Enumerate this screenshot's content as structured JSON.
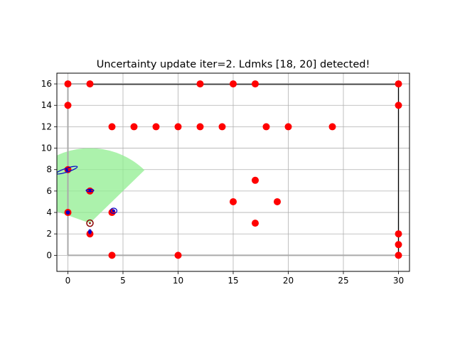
{
  "chart_data": {
    "type": "scatter",
    "title": "Uncertainty update iter=2. Ldmks [18, 20] detected!",
    "xlabel": "",
    "ylabel": "",
    "xlim": [
      -1,
      31
    ],
    "ylim": [
      -1.5,
      17
    ],
    "xticks": [
      0,
      5,
      10,
      15,
      20,
      25,
      30
    ],
    "yticks": [
      0,
      2,
      4,
      6,
      8,
      10,
      12,
      14,
      16
    ],
    "grid": true,
    "colors": {
      "landmark": "#ff0000",
      "estimate": "#0000cc",
      "sensor_fov": "#90ee90",
      "true_path": "#aaaaaa",
      "est_path": "#000000",
      "robot": "#8b0000"
    },
    "landmarks": [
      {
        "x": 0,
        "y": 16
      },
      {
        "x": 2,
        "y": 16
      },
      {
        "x": 12,
        "y": 16
      },
      {
        "x": 15,
        "y": 16
      },
      {
        "x": 17,
        "y": 16
      },
      {
        "x": 30,
        "y": 16
      },
      {
        "x": 0,
        "y": 14
      },
      {
        "x": 30,
        "y": 14
      },
      {
        "x": 4,
        "y": 12
      },
      {
        "x": 6,
        "y": 12
      },
      {
        "x": 8,
        "y": 12
      },
      {
        "x": 10,
        "y": 12
      },
      {
        "x": 12,
        "y": 12
      },
      {
        "x": 14,
        "y": 12
      },
      {
        "x": 18,
        "y": 12
      },
      {
        "x": 20,
        "y": 12
      },
      {
        "x": 24,
        "y": 12
      },
      {
        "x": 0,
        "y": 8
      },
      {
        "x": 17,
        "y": 7
      },
      {
        "x": 2,
        "y": 6
      },
      {
        "x": 15,
        "y": 5
      },
      {
        "x": 19,
        "y": 5
      },
      {
        "x": 0,
        "y": 4
      },
      {
        "x": 4,
        "y": 4
      },
      {
        "x": 17,
        "y": 3
      },
      {
        "x": 2,
        "y": 2
      },
      {
        "x": 30,
        "y": 2
      },
      {
        "x": 30,
        "y": 1
      },
      {
        "x": 4,
        "y": 0
      },
      {
        "x": 10,
        "y": 0
      },
      {
        "x": 30,
        "y": 0
      }
    ],
    "landmark_estimates": [
      {
        "x": -0.1,
        "y": 7.95,
        "rx": 1.0,
        "ry": 0.18,
        "angle_deg": 18
      },
      {
        "x": 2.0,
        "y": 6.05,
        "rx": 0.35,
        "ry": 0.12,
        "angle_deg": 0
      },
      {
        "x": 4.15,
        "y": 4.15,
        "rx": 0.3,
        "ry": 0.25,
        "angle_deg": 0
      },
      {
        "x": 2.0,
        "y": 2.2,
        "rx": 0.12,
        "ry": 0.2,
        "angle_deg": 0
      },
      {
        "x": 0.0,
        "y": 4.0,
        "rx": 0.15,
        "ry": 0.15,
        "angle_deg": 0
      }
    ],
    "robot": {
      "x": 2,
      "y": 3
    },
    "sensor_fov": {
      "x": 2,
      "y": 3,
      "range": 7,
      "start_deg": 45,
      "end_deg": 160
    },
    "true_path": [
      [
        0,
        0
      ],
      [
        0,
        16
      ],
      [
        30,
        16
      ],
      [
        30,
        0
      ],
      [
        0,
        0
      ]
    ],
    "estimated_path": [
      [
        2,
        15.95
      ],
      [
        30,
        15.95
      ],
      [
        30,
        0.05
      ]
    ]
  }
}
